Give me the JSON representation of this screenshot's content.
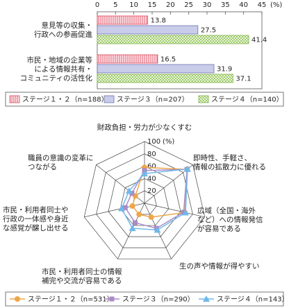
{
  "chart_data": [
    {
      "type": "hbar",
      "categories": [
        "意見等の収集・\n行政への参画促進",
        "市民・地域の企業等\nによる情報共有・\nコミュニティの活性化"
      ],
      "series": [
        {
          "name": "ステージ１・２（n=188）",
          "color": "#e0475a",
          "values": [
            13.8,
            16.5
          ]
        },
        {
          "name": "ステージ３（n=207）",
          "color": "#6b6fb0",
          "values": [
            27.5,
            31.9
          ]
        },
        {
          "name": "ステージ４（n=140）",
          "color": "#7fb34a",
          "values": [
            41.4,
            37.1
          ]
        }
      ],
      "xlim": [
        0,
        45
      ],
      "xticks": [
        0,
        5,
        10,
        15,
        20,
        25,
        30,
        35,
        40,
        45
      ],
      "x_unit": "(%)",
      "grid": false
    },
    {
      "type": "radar",
      "categories": [
        "財政負担・労力が少なくすむ",
        "即時性、手軽さ、\n情報の拡散力に優れる",
        "広域（全国・海外\nなど）への情報発信\nが容易である",
        "生の声や情報が得やすい",
        "市民・利用者同士の情報\n補完や交流が容易である",
        "市民・利用者同士や\n行政の一体感や身近\nな感覚が醸し出せる",
        "職員の意識の変革に\nつながる"
      ],
      "series": [
        {
          "name": "ステージ１・２（n=531）",
          "color": "#eda64a",
          "marker": "circle",
          "values": [
            58,
            88,
            67,
            25,
            20,
            20,
            19
          ]
        },
        {
          "name": "ステージ３（n=290）",
          "color": "#a98bc6",
          "marker": "square",
          "values": [
            53,
            88,
            65,
            45,
            35,
            32,
            26
          ]
        },
        {
          "name": "ステージ４（n=143）",
          "color": "#6fb8ea",
          "marker": "triangle",
          "values": [
            48,
            89,
            68,
            48,
            45,
            38,
            32
          ]
        }
      ],
      "rlim": [
        0,
        100
      ],
      "rticks": [
        20,
        40,
        60,
        80,
        100
      ],
      "r_unit": "(%)"
    }
  ]
}
